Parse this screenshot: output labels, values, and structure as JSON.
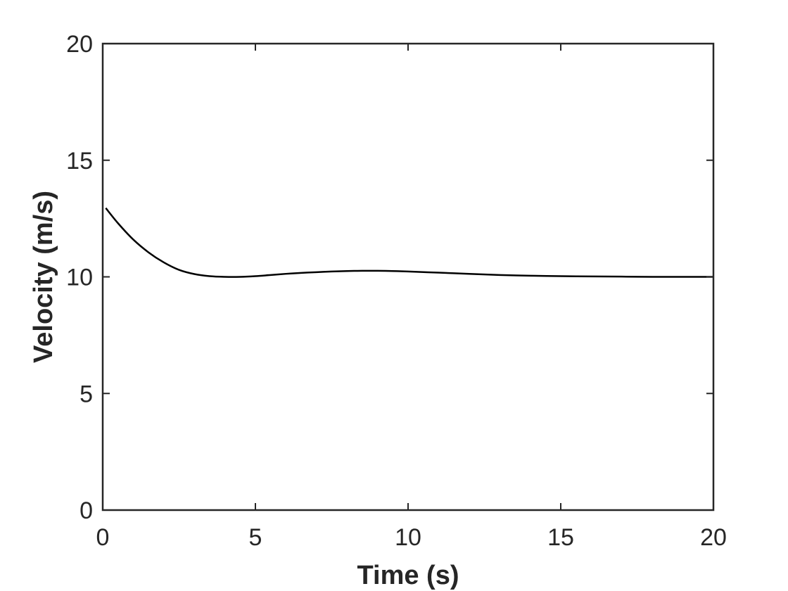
{
  "chart_data": {
    "type": "line",
    "title": "",
    "xlabel": "Time (s)",
    "ylabel": "Velocity (m/s)",
    "xlim": [
      0,
      20
    ],
    "ylim": [
      0,
      20
    ],
    "xticks": [
      0,
      5,
      10,
      15,
      20
    ],
    "yticks": [
      0,
      5,
      10,
      15,
      20
    ],
    "grid": false,
    "box": true,
    "series": [
      {
        "color": "#000000",
        "x": [
          0.1,
          0.5,
          1.0,
          1.5,
          2.0,
          2.5,
          3.0,
          3.5,
          4.0,
          4.5,
          5.0,
          5.5,
          6.0,
          6.5,
          7.0,
          7.5,
          8.0,
          8.5,
          9.0,
          9.5,
          10.0,
          11.0,
          12.0,
          13.0,
          14.0,
          15.0,
          16.0,
          17.0,
          18.0,
          19.0,
          20.0
        ],
        "y": [
          12.95,
          12.3,
          11.6,
          11.05,
          10.62,
          10.3,
          10.12,
          10.03,
          10.0,
          10.0,
          10.03,
          10.08,
          10.13,
          10.17,
          10.2,
          10.23,
          10.25,
          10.26,
          10.26,
          10.25,
          10.23,
          10.18,
          10.13,
          10.08,
          10.05,
          10.03,
          10.02,
          10.01,
          10.0,
          10.0,
          10.0
        ]
      }
    ]
  }
}
